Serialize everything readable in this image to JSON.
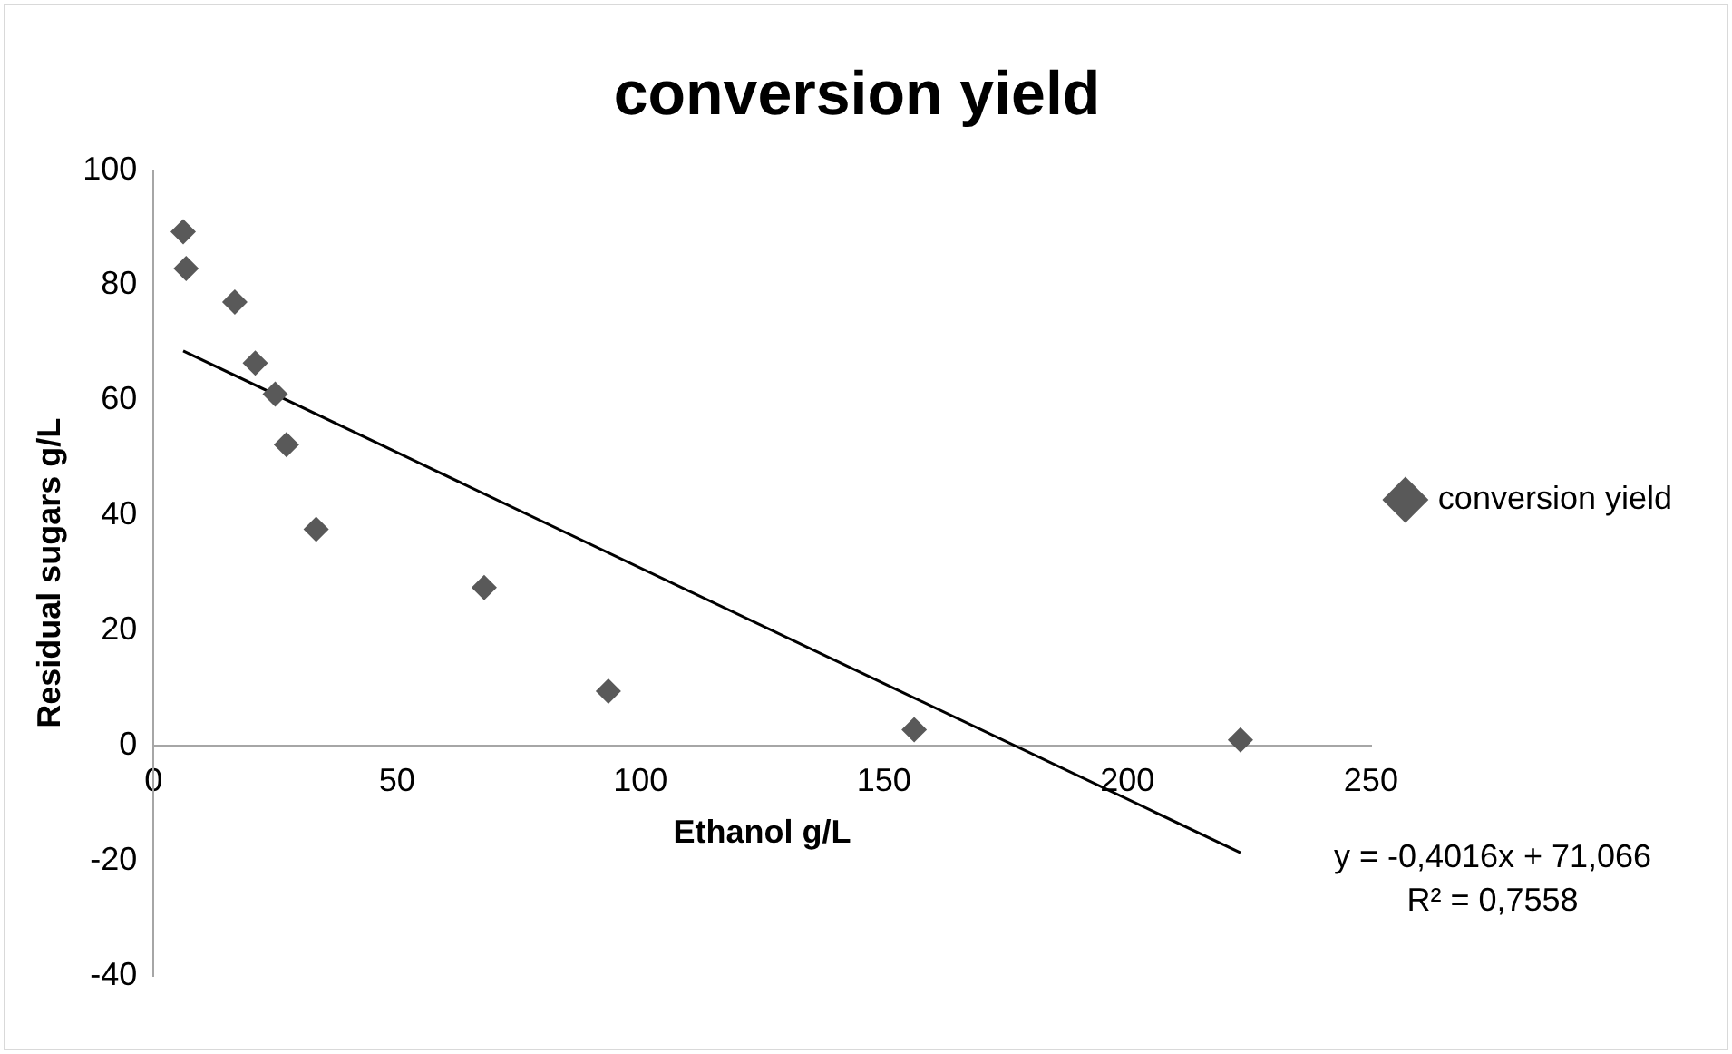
{
  "chart_data": {
    "type": "scatter",
    "title": "conversion yield",
    "xlabel": "Ethanol g/L",
    "ylabel": "Residual sugars g/L",
    "xlim": [
      0,
      250
    ],
    "xticks": [
      0,
      50,
      100,
      150,
      200,
      250
    ],
    "ylim": [
      -40,
      100
    ],
    "yticks": [
      -40,
      -20,
      0,
      20,
      40,
      60,
      80,
      100
    ],
    "grid": false,
    "legend": "right",
    "marker": "diamond",
    "series": [
      {
        "name": "conversion yield",
        "color": "#595959",
        "x": [
          6.1,
          6.7,
          16.7,
          20.9,
          25,
          27.3,
          33.4,
          67.9,
          93.4,
          156.2,
          223.2
        ],
        "values": [
          89.3,
          82.9,
          77.1,
          66.5,
          61.1,
          52.3,
          37.6,
          27.5,
          9.5,
          2.8,
          1.0
        ]
      },
      {
        "type": "line",
        "color": "#000000",
        "marker": "none",
        "x": [
          6.1,
          223.2
        ],
        "values": [
          68.6,
          -18.6
        ]
      }
    ],
    "annotations": [
      "y = -0,4016x + 71,066\nR² = 0,7558"
    ]
  }
}
